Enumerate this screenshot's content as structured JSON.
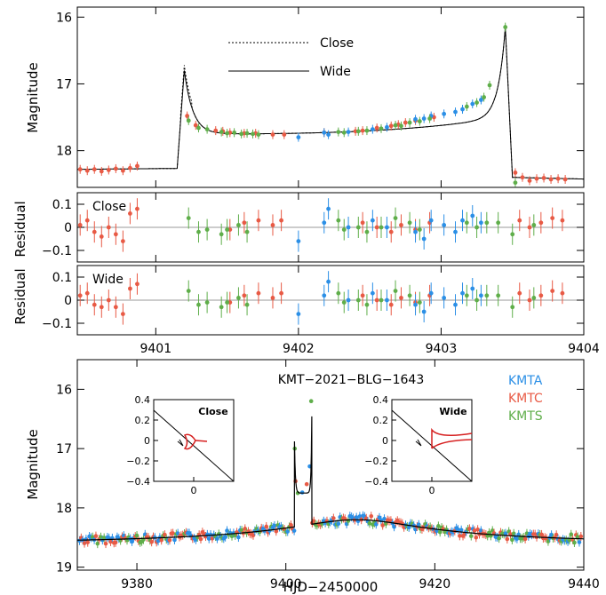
{
  "colors": {
    "KMTA": "#2b8fe6",
    "KMTC": "#e85a45",
    "KMTS": "#5fae4a",
    "model": "#000000",
    "zero_line": "#999999",
    "caustic": "#d62020"
  },
  "chart_data": [
    {
      "type": "scatter",
      "id": "zoom_lightcurve",
      "xlim": [
        9400.45,
        9404.0
      ],
      "ylim": [
        18.55,
        15.85
      ],
      "yticks": [
        16,
        17,
        18
      ],
      "ylabel": "Magnitude",
      "legend": [
        {
          "name": "Close",
          "style": "dotted"
        },
        {
          "name": "Wide",
          "style": "solid"
        }
      ],
      "series": [
        {
          "name": "KMTC",
          "points": [
            [
              9400.47,
              18.28
            ],
            [
              9400.52,
              18.3
            ],
            [
              9400.57,
              18.28
            ],
            [
              9400.62,
              18.31
            ],
            [
              9400.67,
              18.29
            ],
            [
              9400.72,
              18.27
            ],
            [
              9400.77,
              18.3
            ],
            [
              9400.82,
              18.26
            ],
            [
              9400.87,
              18.23
            ],
            [
              9401.22,
              17.48
            ],
            [
              9401.28,
              17.62
            ],
            [
              9401.42,
              17.7
            ],
            [
              9401.47,
              17.71
            ],
            [
              9401.52,
              17.73
            ],
            [
              9401.62,
              17.74
            ],
            [
              9401.7,
              17.74
            ],
            [
              9401.82,
              17.76
            ],
            [
              9401.9,
              17.76
            ],
            [
              9402.18,
              17.73
            ],
            [
              9402.4,
              17.71
            ],
            [
              9402.45,
              17.7
            ],
            [
              9402.55,
              17.66
            ],
            [
              9402.65,
              17.63
            ],
            [
              9402.7,
              17.61
            ],
            [
              9402.75,
              17.58
            ],
            [
              9402.82,
              17.55
            ],
            [
              9402.95,
              17.5
            ],
            [
              9403.52,
              18.33
            ],
            [
              9403.57,
              18.4
            ],
            [
              9403.62,
              18.45
            ],
            [
              9403.67,
              18.42
            ],
            [
              9403.72,
              18.41
            ],
            [
              9403.77,
              18.43
            ],
            [
              9403.82,
              18.42
            ],
            [
              9403.87,
              18.43
            ]
          ]
        },
        {
          "name": "KMTA",
          "points": [
            [
              9402.0,
              17.8
            ],
            [
              9402.18,
              17.73
            ],
            [
              9402.21,
              17.76
            ],
            [
              9402.35,
              17.72
            ],
            [
              9402.52,
              17.68
            ],
            [
              9402.62,
              17.65
            ],
            [
              9402.82,
              17.53
            ],
            [
              9402.88,
              17.52
            ],
            [
              9402.93,
              17.48
            ],
            [
              9403.02,
              17.45
            ],
            [
              9403.1,
              17.42
            ],
            [
              9403.15,
              17.38
            ],
            [
              9403.22,
              17.3
            ],
            [
              9403.28,
              17.24
            ]
          ]
        },
        {
          "name": "KMTS",
          "points": [
            [
              9401.23,
              17.55
            ],
            [
              9401.3,
              17.66
            ],
            [
              9401.36,
              17.68
            ],
            [
              9401.46,
              17.72
            ],
            [
              9401.5,
              17.74
            ],
            [
              9401.55,
              17.73
            ],
            [
              9401.6,
              17.75
            ],
            [
              9401.64,
              17.74
            ],
            [
              9401.68,
              17.75
            ],
            [
              9401.72,
              17.76
            ],
            [
              9402.28,
              17.72
            ],
            [
              9402.32,
              17.73
            ],
            [
              9402.42,
              17.71
            ],
            [
              9402.48,
              17.7
            ],
            [
              9402.58,
              17.67
            ],
            [
              9402.68,
              17.62
            ],
            [
              9402.72,
              17.63
            ],
            [
              9402.78,
              17.58
            ],
            [
              9402.85,
              17.56
            ],
            [
              9402.92,
              17.52
            ],
            [
              9403.18,
              17.34
            ],
            [
              9403.25,
              17.28
            ],
            [
              9403.3,
              17.2
            ],
            [
              9403.34,
              17.02
            ],
            [
              9403.45,
              16.15
            ],
            [
              9403.52,
              18.48
            ]
          ]
        }
      ]
    },
    {
      "type": "scatter",
      "id": "residual_close",
      "label": "Close",
      "xlim": [
        9400.45,
        9404.0
      ],
      "ylim": [
        -0.15,
        0.15
      ],
      "yticks": [
        0.1,
        0,
        -0.1
      ],
      "yticklabels": [
        "0.1",
        "0",
        "−0.1"
      ],
      "ylabel": "Residual",
      "series": [
        {
          "name": "KMTC",
          "points": [
            [
              9400.47,
              0.01
            ],
            [
              9400.52,
              0.03
            ],
            [
              9400.57,
              -0.02
            ],
            [
              9400.62,
              -0.04
            ],
            [
              9400.67,
              0.0
            ],
            [
              9400.72,
              -0.03
            ],
            [
              9400.77,
              -0.06
            ],
            [
              9400.82,
              0.06
            ],
            [
              9400.87,
              0.08
            ],
            [
              9401.52,
              -0.01
            ],
            [
              9401.62,
              0.02
            ],
            [
              9401.72,
              0.03
            ],
            [
              9401.82,
              0.01
            ],
            [
              9401.88,
              0.03
            ],
            [
              9402.45,
              0.02
            ],
            [
              9402.55,
              0.0
            ],
            [
              9402.65,
              -0.02
            ],
            [
              9402.72,
              0.01
            ],
            [
              9402.82,
              -0.01
            ],
            [
              9402.92,
              0.02
            ],
            [
              9403.55,
              0.03
            ],
            [
              9403.62,
              0.0
            ],
            [
              9403.7,
              0.02
            ],
            [
              9403.78,
              0.04
            ],
            [
              9403.85,
              0.03
            ]
          ]
        },
        {
          "name": "KMTA",
          "points": [
            [
              9402.0,
              -0.06
            ],
            [
              9402.18,
              0.02
            ],
            [
              9402.21,
              0.08
            ],
            [
              9402.35,
              0.0
            ],
            [
              9402.52,
              0.03
            ],
            [
              9402.62,
              0.0
            ],
            [
              9402.82,
              -0.02
            ],
            [
              9402.88,
              -0.05
            ],
            [
              9402.93,
              0.03
            ],
            [
              9403.02,
              0.01
            ],
            [
              9403.1,
              -0.02
            ],
            [
              9403.15,
              0.03
            ],
            [
              9403.22,
              0.05
            ],
            [
              9403.28,
              0.02
            ]
          ]
        },
        {
          "name": "KMTS",
          "points": [
            [
              9401.23,
              0.04
            ],
            [
              9401.3,
              -0.02
            ],
            [
              9401.36,
              -0.01
            ],
            [
              9401.46,
              -0.03
            ],
            [
              9401.5,
              -0.01
            ],
            [
              9401.58,
              0.01
            ],
            [
              9401.64,
              -0.02
            ],
            [
              9402.28,
              0.03
            ],
            [
              9402.32,
              -0.01
            ],
            [
              9402.42,
              0.0
            ],
            [
              9402.48,
              -0.02
            ],
            [
              9402.58,
              0.0
            ],
            [
              9402.68,
              0.04
            ],
            [
              9402.78,
              0.02
            ],
            [
              9402.85,
              -0.01
            ],
            [
              9403.18,
              0.02
            ],
            [
              9403.25,
              0.0
            ],
            [
              9403.32,
              0.02
            ],
            [
              9403.4,
              0.02
            ],
            [
              9403.5,
              -0.03
            ],
            [
              9403.65,
              0.01
            ]
          ]
        }
      ]
    },
    {
      "type": "scatter",
      "id": "residual_wide",
      "label": "Wide",
      "xlim": [
        9400.45,
        9404.0
      ],
      "ylim": [
        -0.15,
        0.15
      ],
      "yticks": [
        0.1,
        0,
        -0.1
      ],
      "yticklabels": [
        "0.1",
        "0",
        "−0.1"
      ],
      "xticks": [
        9401,
        9402,
        9403,
        9404
      ],
      "ylabel": "Residual",
      "series": [
        {
          "name": "KMTC",
          "points": [
            [
              9400.47,
              0.02
            ],
            [
              9400.52,
              0.03
            ],
            [
              9400.57,
              -0.02
            ],
            [
              9400.62,
              -0.03
            ],
            [
              9400.67,
              0.0
            ],
            [
              9400.72,
              -0.03
            ],
            [
              9400.77,
              -0.06
            ],
            [
              9400.82,
              0.05
            ],
            [
              9400.87,
              0.07
            ],
            [
              9401.52,
              -0.01
            ],
            [
              9401.62,
              0.02
            ],
            [
              9401.72,
              0.03
            ],
            [
              9401.82,
              0.01
            ],
            [
              9401.88,
              0.03
            ],
            [
              9402.45,
              0.02
            ],
            [
              9402.55,
              0.0
            ],
            [
              9402.65,
              -0.02
            ],
            [
              9402.72,
              0.01
            ],
            [
              9402.82,
              -0.01
            ],
            [
              9402.92,
              0.02
            ],
            [
              9403.55,
              0.03
            ],
            [
              9403.62,
              0.0
            ],
            [
              9403.7,
              0.02
            ],
            [
              9403.78,
              0.04
            ],
            [
              9403.85,
              0.03
            ]
          ]
        },
        {
          "name": "KMTA",
          "points": [
            [
              9402.0,
              -0.06
            ],
            [
              9402.18,
              0.02
            ],
            [
              9402.21,
              0.08
            ],
            [
              9402.35,
              0.0
            ],
            [
              9402.52,
              0.03
            ],
            [
              9402.62,
              0.0
            ],
            [
              9402.82,
              -0.02
            ],
            [
              9402.88,
              -0.05
            ],
            [
              9402.93,
              0.03
            ],
            [
              9403.02,
              0.01
            ],
            [
              9403.1,
              -0.02
            ],
            [
              9403.15,
              0.03
            ],
            [
              9403.22,
              0.05
            ],
            [
              9403.28,
              0.02
            ]
          ]
        },
        {
          "name": "KMTS",
          "points": [
            [
              9401.23,
              0.04
            ],
            [
              9401.3,
              -0.02
            ],
            [
              9401.36,
              -0.01
            ],
            [
              9401.46,
              -0.03
            ],
            [
              9401.5,
              -0.01
            ],
            [
              9401.58,
              0.01
            ],
            [
              9401.64,
              -0.02
            ],
            [
              9402.28,
              0.03
            ],
            [
              9402.32,
              -0.01
            ],
            [
              9402.42,
              0.0
            ],
            [
              9402.48,
              -0.02
            ],
            [
              9402.58,
              0.0
            ],
            [
              9402.68,
              0.04
            ],
            [
              9402.78,
              0.02
            ],
            [
              9402.85,
              -0.01
            ],
            [
              9403.18,
              0.02
            ],
            [
              9403.25,
              0.0
            ],
            [
              9403.32,
              0.02
            ],
            [
              9403.4,
              0.02
            ],
            [
              9403.5,
              -0.03
            ],
            [
              9403.65,
              0.01
            ]
          ]
        }
      ]
    },
    {
      "type": "scatter",
      "id": "full_lightcurve",
      "title": "KMT−2021−BLG−1643",
      "xlim": [
        9372,
        9440
      ],
      "ylim": [
        19.05,
        15.5
      ],
      "xticks": [
        9380,
        9400,
        9420,
        9440
      ],
      "yticks": [
        16,
        17,
        18,
        19
      ],
      "xlabel": "HJD−2450000",
      "ylabel": "Magnitude",
      "legend": [
        "KMTA",
        "KMTC",
        "KMTS"
      ],
      "legend_position": "top-right",
      "baseline_mag": 18.65,
      "peak": {
        "t0": 9409.5,
        "mag": 18.2
      },
      "anomaly": {
        "start": 9401.15,
        "end": 9403.5,
        "mag_first_spike": 16.8,
        "mag_second_spike": 16.15,
        "trough": 17.75
      }
    },
    {
      "type": "diagram",
      "id": "inset_close",
      "label": "Close",
      "xlim": [
        -0.4,
        0.4
      ],
      "ylim": [
        -0.4,
        0.4
      ],
      "xticks": [
        0
      ],
      "yticks": [
        0.4,
        0.2,
        0,
        -0.2,
        -0.4
      ],
      "yticklabels": [
        "0.4",
        "0.2",
        "0",
        "−0.2",
        "−0.4"
      ]
    },
    {
      "type": "diagram",
      "id": "inset_wide",
      "label": "Wide",
      "xlim": [
        -0.4,
        0.4
      ],
      "ylim": [
        -0.4,
        0.4
      ],
      "xticks": [
        0
      ],
      "yticks": [
        0.4,
        0.2,
        0,
        -0.2,
        -0.4
      ],
      "yticklabels": [
        "0.4",
        "0.2",
        "0",
        "−0.2",
        "−0.4"
      ]
    }
  ]
}
